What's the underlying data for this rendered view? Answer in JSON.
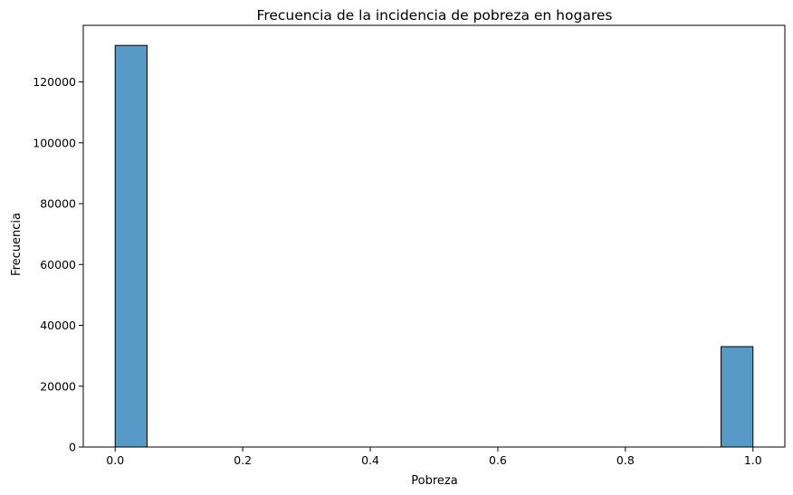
{
  "chart_data": {
    "type": "bar",
    "title": "Frecuencia de la incidencia de pobreza en hogares",
    "xlabel": "Pobreza",
    "ylabel": "Frecuencia",
    "xlim": [
      -0.05,
      1.05
    ],
    "ylim": [
      0,
      138600
    ],
    "xticks": [
      0.0,
      0.2,
      0.4,
      0.6,
      0.8,
      1.0
    ],
    "xtick_labels": [
      "0.0",
      "0.2",
      "0.4",
      "0.6",
      "0.8",
      "1.0"
    ],
    "yticks": [
      0,
      20000,
      40000,
      60000,
      80000,
      100000,
      120000
    ],
    "ytick_labels": [
      "0",
      "20000",
      "40000",
      "60000",
      "80000",
      "100000",
      "120000"
    ],
    "bar_color": "#5799C7",
    "edge_color": "#000000",
    "grid": false,
    "bins": [
      {
        "x0": 0.0,
        "x1": 0.05,
        "count": 132000
      },
      {
        "x0": 0.95,
        "x1": 1.0,
        "count": 33000
      }
    ]
  }
}
